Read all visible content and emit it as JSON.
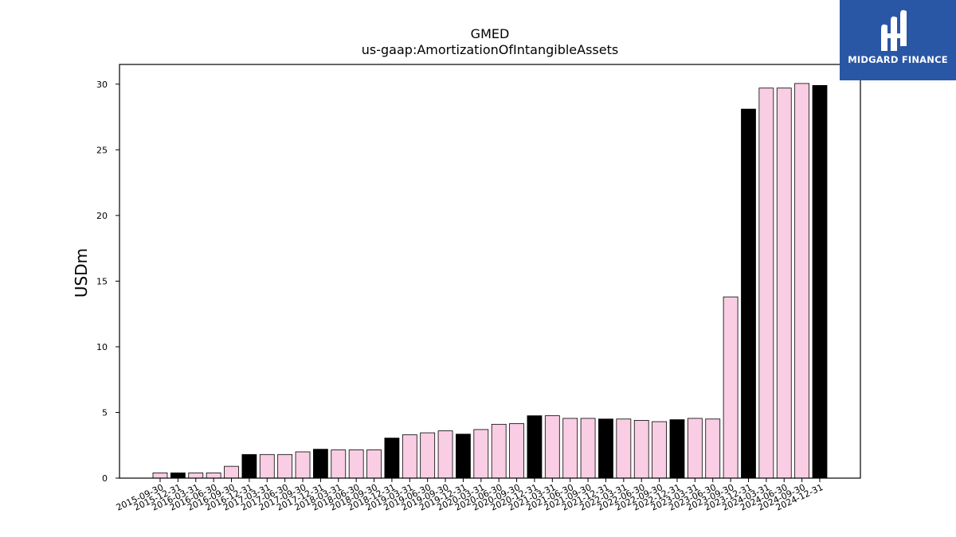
{
  "chart_data": {
    "type": "bar",
    "title": "GMED",
    "subtitle": "us-gaap:AmortizationOfIntangibleAssets",
    "xlabel": "",
    "ylabel": "USDm",
    "ylim": [
      0,
      31.5
    ],
    "yticks": [
      0,
      5,
      10,
      15,
      20,
      25,
      30
    ],
    "grid": false,
    "colors": {
      "pink": "#f9cde3",
      "black": "#000000"
    },
    "categories": [
      "2015-09-30",
      "2015-12-31",
      "2016-03-31",
      "2016-06-30",
      "2016-09-30",
      "2016-12-31",
      "2017-03-31",
      "2017-06-30",
      "2017-09-30",
      "2017-12-31",
      "2018-03-31",
      "2018-06-30",
      "2018-09-30",
      "2018-12-31",
      "2019-03-31",
      "2019-06-30",
      "2019-09-30",
      "2019-12-31",
      "2020-03-31",
      "2020-06-30",
      "2020-09-30",
      "2020-12-31",
      "2021-03-31",
      "2021-06-30",
      "2021-09-30",
      "2021-12-31",
      "2022-03-31",
      "2022-06-30",
      "2022-09-30",
      "2022-12-31",
      "2023-03-31",
      "2023-06-30",
      "2023-09-30",
      "2023-12-31",
      "2024-03-31",
      "2024-06-30",
      "2024-09-30",
      "2024-12-31"
    ],
    "values": [
      0.4,
      0.4,
      0.4,
      0.4,
      0.9,
      1.8,
      1.8,
      1.8,
      2.0,
      2.2,
      2.15,
      2.15,
      2.15,
      3.05,
      3.3,
      3.45,
      3.6,
      3.35,
      3.7,
      4.1,
      4.15,
      4.75,
      4.75,
      4.55,
      4.55,
      4.5,
      4.5,
      4.4,
      4.3,
      4.45,
      4.55,
      4.5,
      13.8,
      28.1,
      29.7,
      29.7,
      30.05,
      29.9
    ],
    "bar_colors": [
      "pink",
      "black",
      "pink",
      "pink",
      "pink",
      "black",
      "pink",
      "pink",
      "pink",
      "black",
      "pink",
      "pink",
      "pink",
      "black",
      "pink",
      "pink",
      "pink",
      "black",
      "pink",
      "pink",
      "pink",
      "black",
      "pink",
      "pink",
      "pink",
      "black",
      "pink",
      "pink",
      "pink",
      "black",
      "pink",
      "pink",
      "pink",
      "black",
      "pink",
      "pink",
      "pink",
      "black"
    ]
  },
  "logo": {
    "text": "MIDGARD FINANCE",
    "icon": "midgard-logo-icon",
    "color": "#2a56a6"
  }
}
